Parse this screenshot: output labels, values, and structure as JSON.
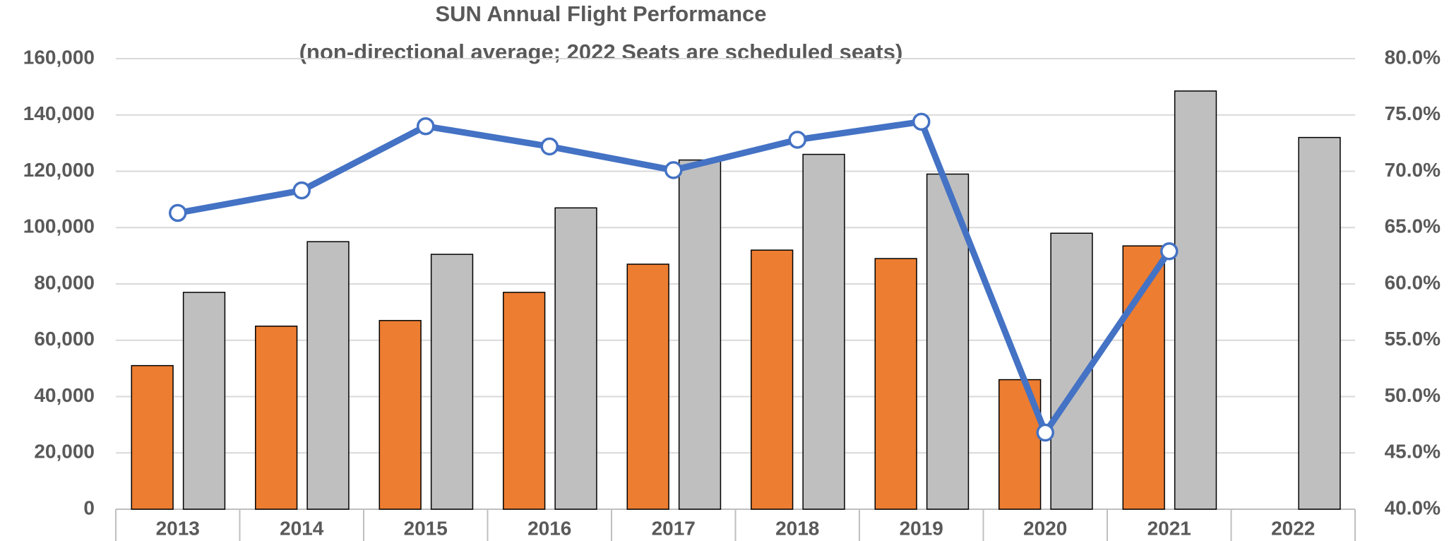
{
  "chart_data": {
    "type": "bar",
    "title": "SUN Annual Flight Performance",
    "subtitle": "(non-directional average; 2022 Seats are scheduled seats)",
    "categories": [
      "2013",
      "2014",
      "2015",
      "2016",
      "2017",
      "2018",
      "2019",
      "2020",
      "2021",
      "2022"
    ],
    "series": [
      {
        "color": "#ed7d31",
        "values": [
          51000,
          65000,
          67000,
          77000,
          87000,
          92000,
          89000,
          46000,
          93500,
          null
        ]
      },
      {
        "color": "#bfbfbf",
        "values": [
          77000,
          95000,
          90500,
          107000,
          124000,
          126000,
          119000,
          98000,
          148500,
          132000
        ]
      },
      {
        "type": "line",
        "axis": "y2",
        "color": "#4472c4",
        "values": [
          66.3,
          68.3,
          74.0,
          72.2,
          70.1,
          72.8,
          74.4,
          46.8,
          62.9,
          null
        ]
      }
    ],
    "ylim": [
      0,
      160000
    ],
    "yticks": [
      0,
      {
        "value": 20000,
        "label": "20,000"
      },
      {
        "value": 40000,
        "label": "40,000"
      },
      {
        "value": 60000,
        "label": "60,000"
      },
      {
        "value": 80000,
        "label": "80,000"
      },
      {
        "value": 100000,
        "label": "100,000"
      },
      {
        "value": 120000,
        "label": "120,000"
      },
      {
        "value": 140000,
        "label": "140,000"
      },
      {
        "value": 160000,
        "label": "160,000"
      }
    ],
    "y2lim": [
      40,
      80
    ],
    "y2ticks": [
      {
        "value": 40,
        "label": "40.0%"
      },
      {
        "value": 45,
        "label": "45.0%"
      },
      {
        "value": 50,
        "label": "50.0%"
      },
      {
        "value": 55,
        "label": "55.0%"
      },
      {
        "value": 60,
        "label": "60.0%"
      },
      {
        "value": 65,
        "label": "65.0%"
      },
      {
        "value": 70,
        "label": "70.0%"
      },
      {
        "value": 75,
        "label": "75.0%"
      },
      {
        "value": 80,
        "label": "80.0%"
      }
    ],
    "grid": true
  }
}
